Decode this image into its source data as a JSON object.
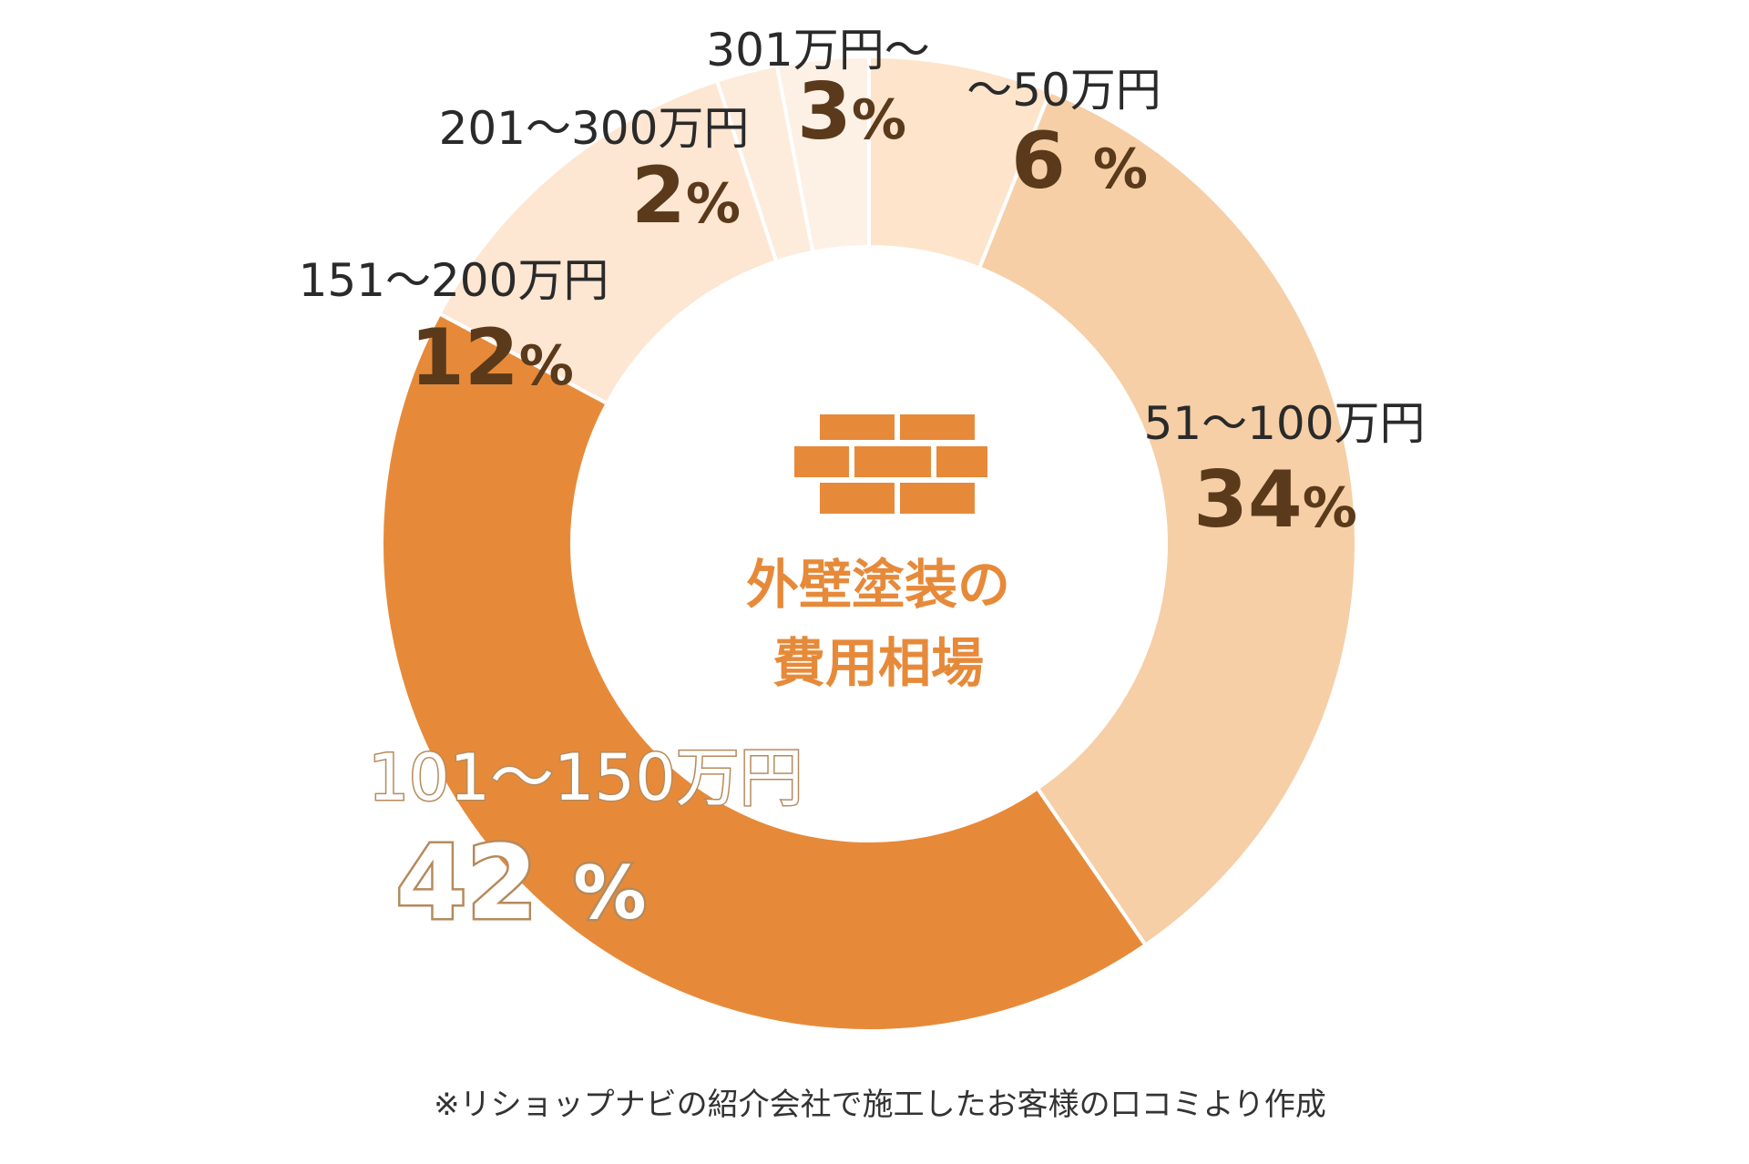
{
  "chart_data": {
    "type": "pie",
    "variant": "donut",
    "center_title": [
      "外壁塗装の",
      "費用相場"
    ],
    "center_icon": "brick-wall-icon",
    "categories": [
      "～50万円",
      "51～100万円",
      "101～150万円",
      "151～200万円",
      "201～300万円",
      "301万円～"
    ],
    "values": [
      6,
      34,
      42,
      12,
      2,
      3
    ],
    "value_labels": [
      "6",
      "34",
      "42",
      "12",
      "2",
      "3"
    ],
    "unit": "%",
    "colors": [
      "#fde4cb",
      "#f6cfa7",
      "#e68a3a",
      "#fde6d2",
      "#fdebdc",
      "#fdf0e5"
    ],
    "start": "top",
    "direction": "clockwise",
    "footnote": "※リショップナビの紹介会社で施工したお客様の口コミより作成"
  }
}
